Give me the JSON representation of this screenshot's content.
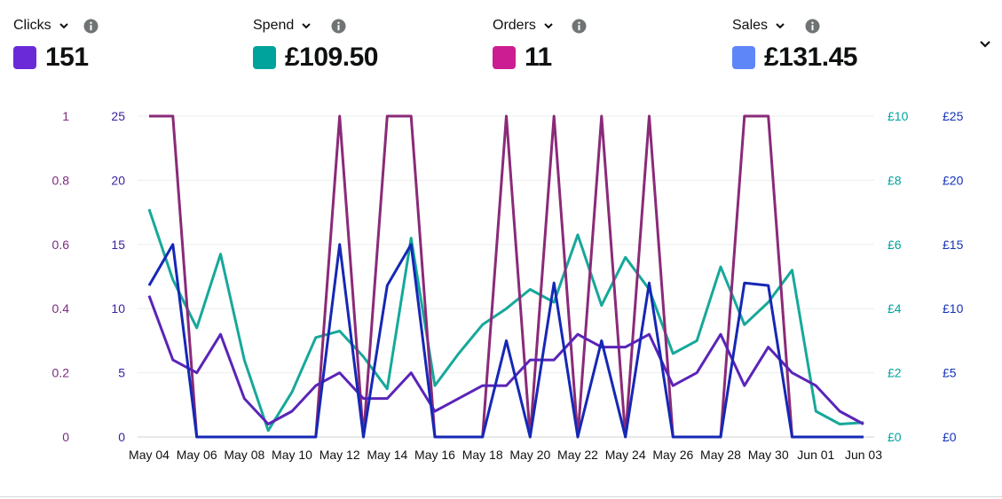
{
  "metrics": [
    {
      "label": "Clicks",
      "value": "151",
      "color": "#6b2ad8"
    },
    {
      "label": "Spend",
      "value": "£109.50",
      "color": "#00a39b"
    },
    {
      "label": "Orders",
      "value": "11",
      "color": "#cc1d92"
    },
    {
      "label": "Sales",
      "value": "£131.45",
      "color": "#5f86f8"
    }
  ],
  "icons": {
    "dropdown": "chevron-down-icon",
    "info": "info-icon",
    "collapse": "chevron-down-icon"
  },
  "chart_data": {
    "type": "line",
    "x": [
      "May 04",
      "May 05",
      "May 06",
      "May 07",
      "May 08",
      "May 09",
      "May 10",
      "May 11",
      "May 12",
      "May 13",
      "May 14",
      "May 15",
      "May 16",
      "May 17",
      "May 18",
      "May 19",
      "May 20",
      "May 21",
      "May 22",
      "May 23",
      "May 24",
      "May 25",
      "May 26",
      "May 27",
      "May 28",
      "May 29",
      "May 30",
      "May 31",
      "Jun 01",
      "Jun 02",
      "Jun 03"
    ],
    "tick_labels": [
      "May 04",
      "May 06",
      "May 08",
      "May 10",
      "May 12",
      "May 14",
      "May 16",
      "May 18",
      "May 20",
      "May 22",
      "May 24",
      "May 26",
      "May 28",
      "May 30",
      "Jun 01",
      "Jun 03"
    ],
    "axes": {
      "orders": {
        "ticks": [
          "0",
          "0.2",
          "0.4",
          "0.6",
          "0.8",
          "1"
        ],
        "range": [
          0,
          1
        ],
        "color": "#7b2a7e"
      },
      "clicks": {
        "ticks": [
          "0",
          "5",
          "10",
          "15",
          "20",
          "25"
        ],
        "range": [
          0,
          25
        ],
        "color": "#3a1f9e"
      },
      "spend": {
        "ticks": [
          "£0",
          "£2",
          "£4",
          "£6",
          "£8",
          "£10"
        ],
        "range": [
          0,
          10
        ],
        "color": "#00a39b"
      },
      "sales": {
        "ticks": [
          "£0",
          "£5",
          "£10",
          "£15",
          "£20",
          "£25"
        ],
        "range": [
          0,
          25
        ],
        "color": "#1433b8"
      }
    },
    "series": [
      {
        "key": "spend",
        "color": "#16a89a",
        "values": [
          7.1,
          4.9,
          3.4,
          5.7,
          2.4,
          0.2,
          1.4,
          3.1,
          3.3,
          2.5,
          1.5,
          6.2,
          1.6,
          2.6,
          3.5,
          4.0,
          4.6,
          4.2,
          6.3,
          4.1,
          5.6,
          4.6,
          2.6,
          3.0,
          5.3,
          3.5,
          4.2,
          5.2,
          0.8,
          0.4,
          0.45
        ]
      },
      {
        "key": "orders",
        "color": "#8a2a78",
        "values": [
          1,
          1,
          0,
          0,
          0,
          0,
          0,
          0,
          1,
          0,
          1,
          1,
          0,
          0,
          0,
          1,
          0,
          1,
          0,
          1,
          0,
          1,
          0,
          0,
          0,
          1,
          1,
          0,
          0,
          0,
          0
        ]
      },
      {
        "key": "clicks",
        "color": "#5a24b8",
        "values": [
          11,
          6,
          5,
          8,
          3,
          1,
          2,
          4,
          5,
          3,
          3,
          5,
          2,
          3,
          4,
          4,
          6,
          6,
          8,
          7,
          7,
          8,
          4,
          5,
          8,
          4,
          7,
          5,
          4,
          2,
          1
        ]
      },
      {
        "key": "sales",
        "color": "#1528b5",
        "values": [
          11.8,
          15,
          0,
          0,
          0,
          0,
          0,
          0,
          15,
          0,
          11.8,
          15,
          0,
          0,
          0,
          7.5,
          0,
          12,
          0,
          7.5,
          0,
          12,
          0,
          0,
          0,
          12,
          11.8,
          0,
          0,
          0,
          0
        ]
      }
    ]
  }
}
